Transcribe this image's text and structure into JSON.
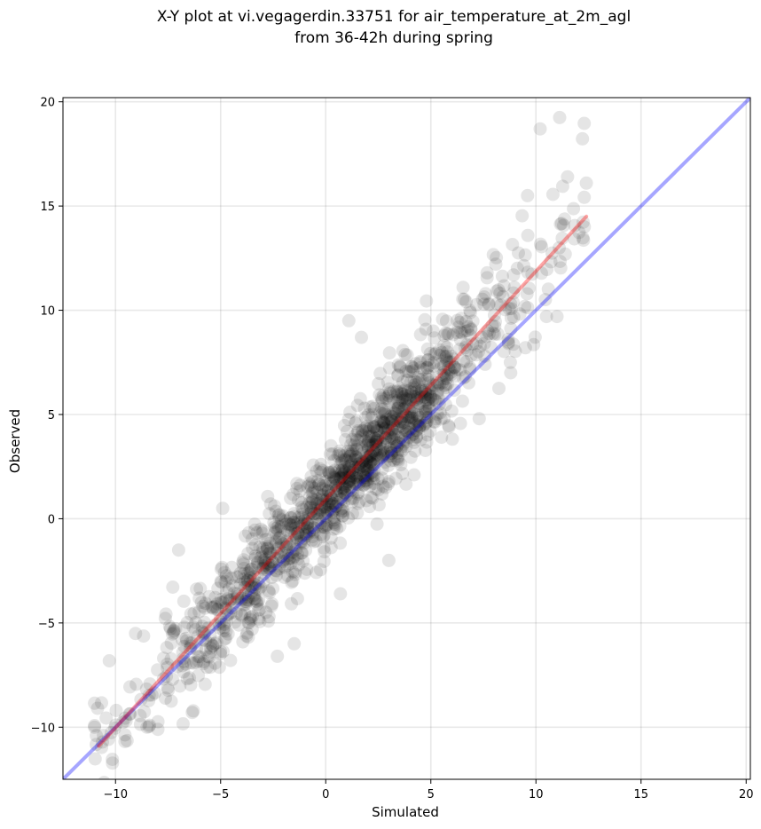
{
  "chart_data": {
    "type": "scatter",
    "title_line1": "X-Y plot at vi.vegagerdin.33751 for air_temperature_at_2m_agl",
    "title_line2": "from 36-42h during spring",
    "xlabel": "Simulated",
    "ylabel": "Observed",
    "xlim": [
      -12.5,
      20.2
    ],
    "ylim": [
      -12.5,
      20.2
    ],
    "xticks": [
      -10,
      -5,
      0,
      5,
      10,
      15,
      20
    ],
    "yticks": [
      -10,
      -5,
      0,
      5,
      10,
      15,
      20
    ],
    "tick_labels": [
      "−10",
      "−5",
      "0",
      "5",
      "10",
      "15",
      "20"
    ],
    "grid": true,
    "point_color": "#000000",
    "point_alpha": 0.1,
    "point_count": 1400,
    "identity_line": {
      "x": [
        -12.5,
        20.2
      ],
      "y": [
        -12.5,
        20.2
      ],
      "color": "#0000ff"
    },
    "fit_line": {
      "x": [
        -10.8,
        12.4
      ],
      "y": [
        -10.9,
        14.5
      ],
      "color": "#ff0000"
    },
    "distribution": {
      "x_range": [
        -11,
        12.5
      ],
      "slope": 1.09,
      "intercept": 0.9,
      "residual_sd": 1.6
    },
    "highlight_points": [
      {
        "x": 10.2,
        "y": 18.7
      },
      {
        "x": 12.4,
        "y": 16.1
      },
      {
        "x": 12.3,
        "y": 14.0
      },
      {
        "x": 9.6,
        "y": 15.5
      },
      {
        "x": 10.5,
        "y": 9.7
      },
      {
        "x": 11.0,
        "y": 9.7
      },
      {
        "x": 9.5,
        "y": 8.2
      },
      {
        "x": -11.0,
        "y": -10.0
      },
      {
        "x": -8.5,
        "y": -10.0
      },
      {
        "x": -9.5,
        "y": -9.7
      },
      {
        "x": -7.0,
        "y": -1.5
      },
      {
        "x": -4.9,
        "y": 0.5
      },
      {
        "x": 1.7,
        "y": 8.7
      },
      {
        "x": 1.1,
        "y": 9.5
      },
      {
        "x": 3.0,
        "y": -2.0
      },
      {
        "x": 0.7,
        "y": -3.6
      },
      {
        "x": -2.3,
        "y": -6.6
      },
      {
        "x": -1.5,
        "y": -6.0
      },
      {
        "x": 8.8,
        "y": 7.0
      },
      {
        "x": 7.3,
        "y": 4.8
      }
    ]
  }
}
